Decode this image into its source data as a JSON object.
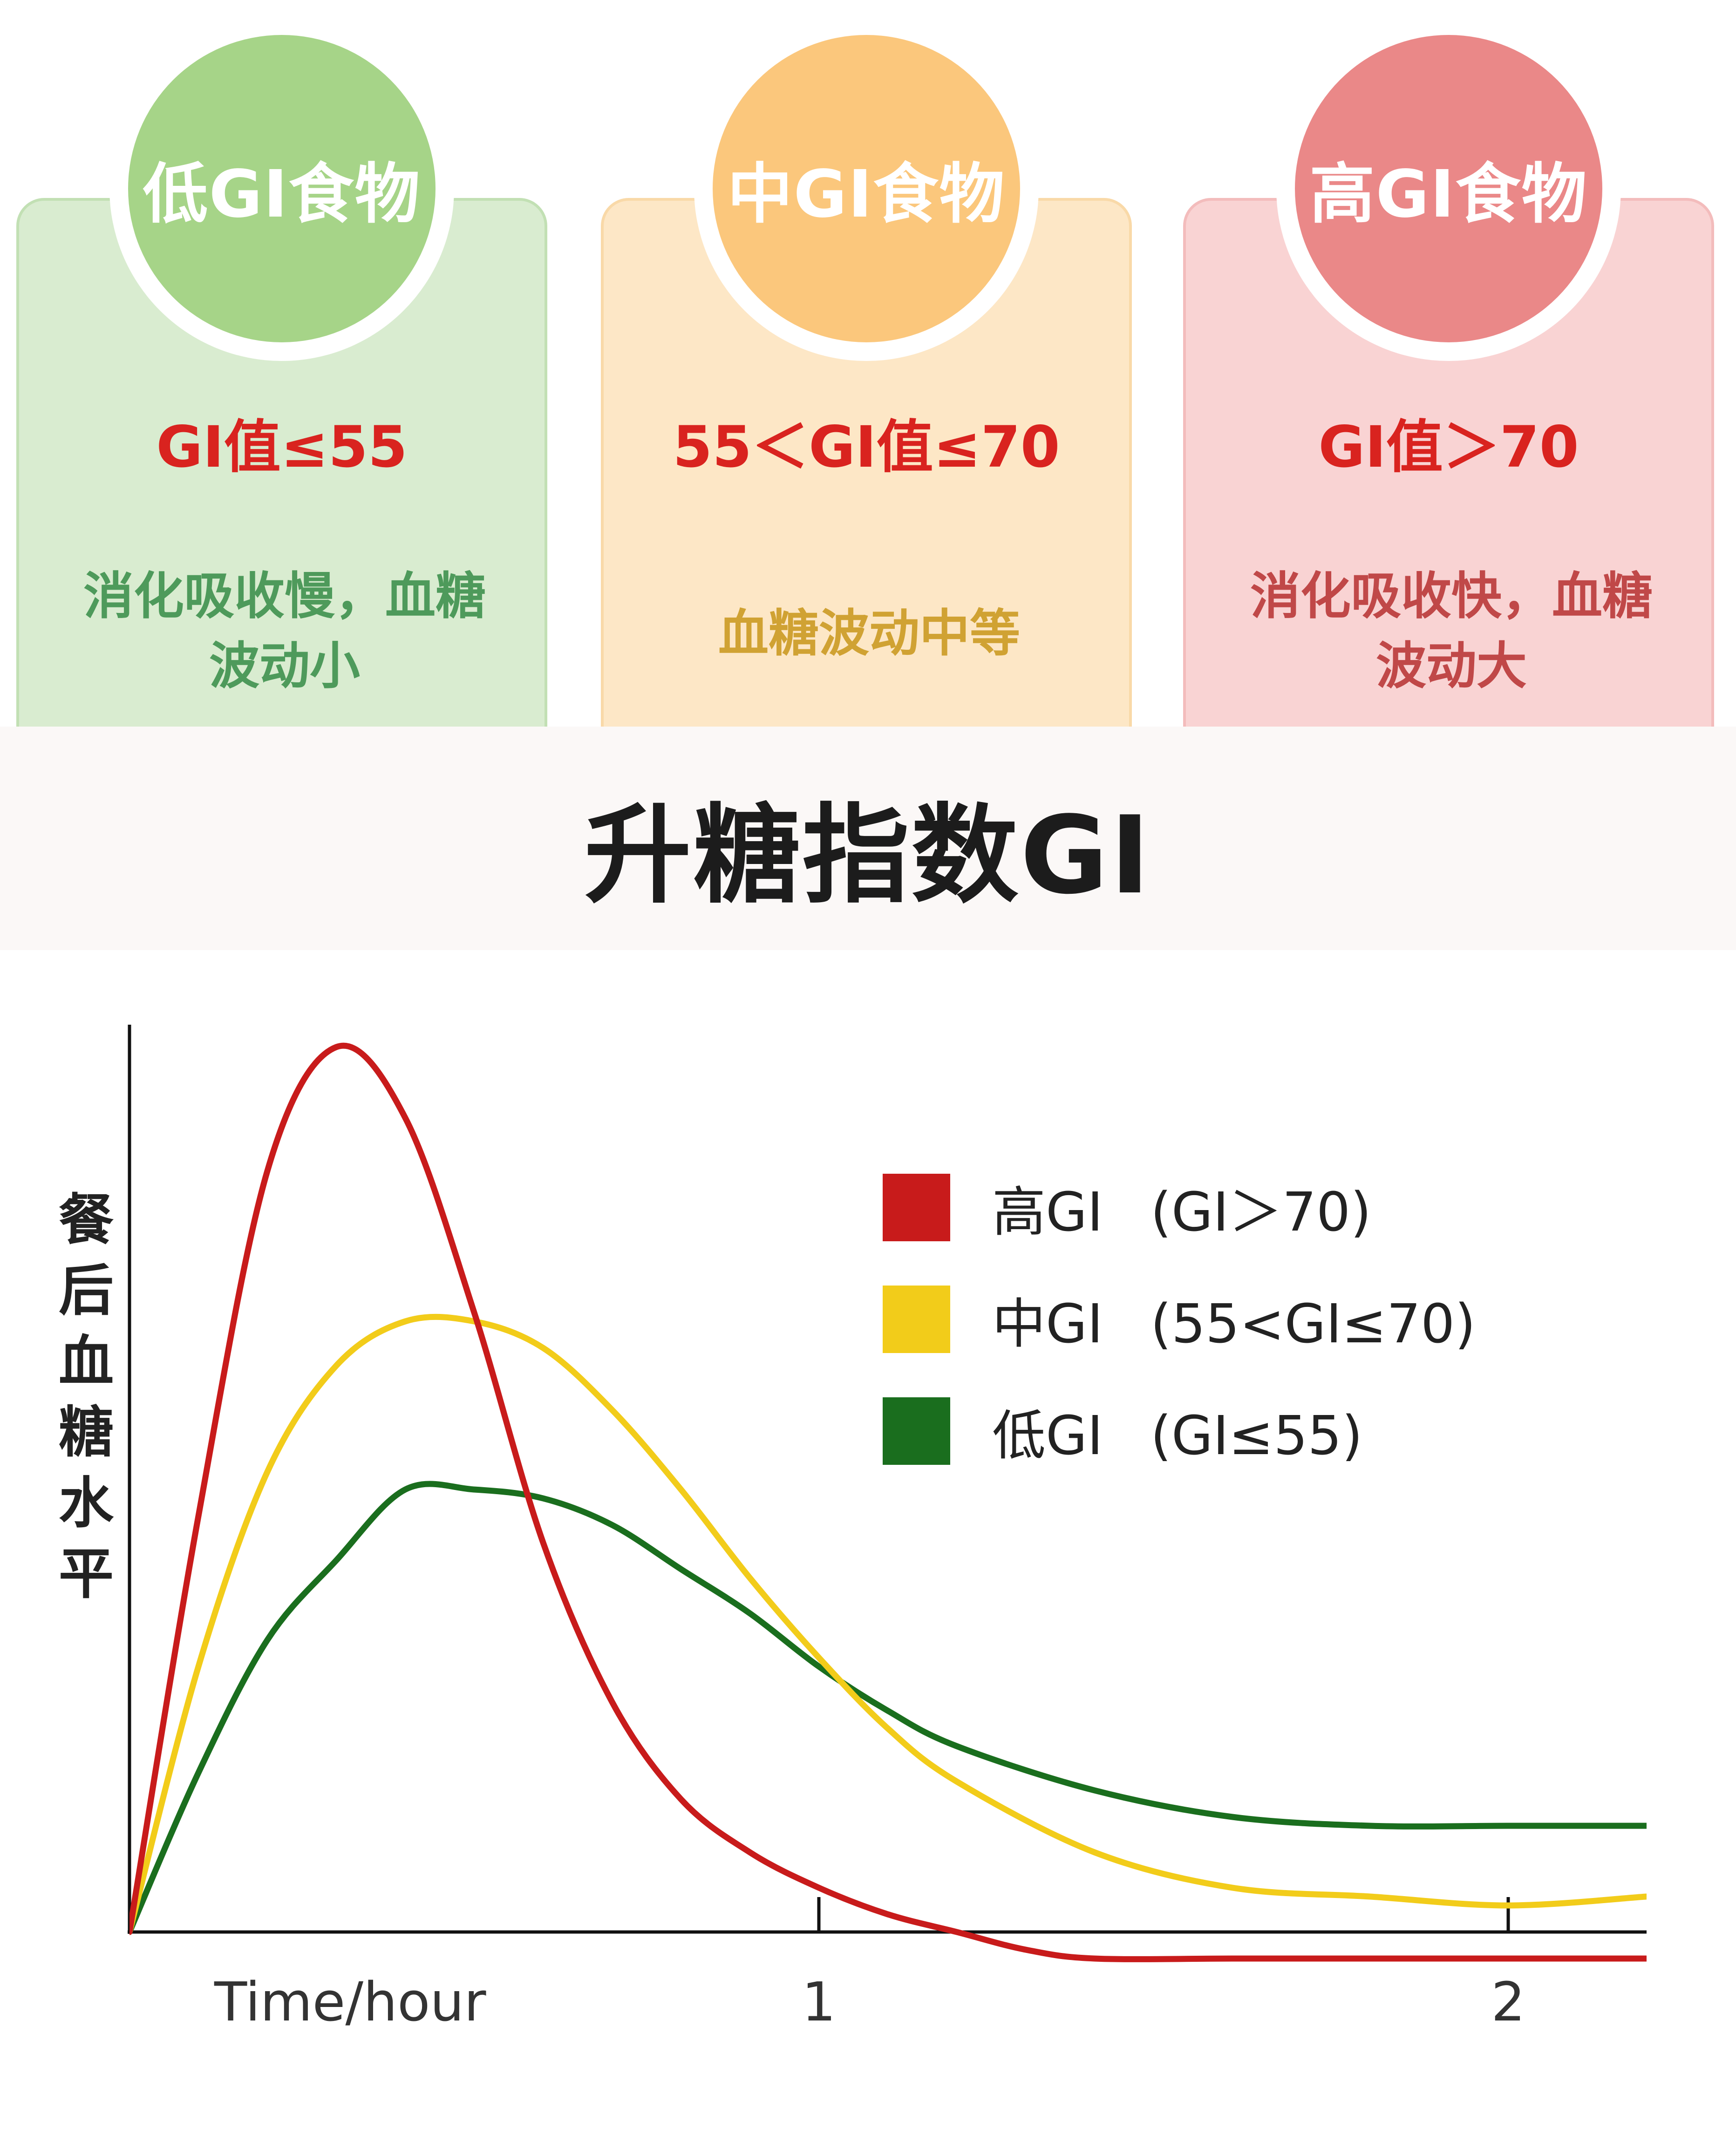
{
  "cards": [
    {
      "title": "低GI食物",
      "range": "GI值≤55",
      "desc": "消化吸收慢，血糖波动小"
    },
    {
      "title": "中GI食物",
      "range": "55＜GI值≤70",
      "desc": "血糖波动中等"
    },
    {
      "title": "高GI食物",
      "range": "GI值＞70",
      "desc": "消化吸收快，血糖波动大"
    }
  ],
  "colors": {
    "low": "#1a6e1e",
    "mid": "#f2cc1a",
    "high": "#c81b1b",
    "range_text": "#d9231f"
  },
  "title": "升糖指数GI",
  "chart_data": {
    "type": "line",
    "xlabel": "Time/hour",
    "ylabel": "餐后血糖水平",
    "x_ticks": [
      {
        "value": 1,
        "label": "1"
      },
      {
        "value": 2,
        "label": "2"
      }
    ],
    "xlim": [
      0,
      2.1
    ],
    "ylim": [
      0,
      1
    ],
    "grid": false,
    "legend_position": "top-right",
    "series": [
      {
        "name": "高GI",
        "legend_suffix": "(GI＞70)",
        "color": "#c81b1b",
        "x": [
          0,
          0.1,
          0.2,
          0.3,
          0.4,
          0.5,
          0.6,
          0.7,
          0.8,
          0.9,
          1.0,
          1.1,
          1.2,
          1.3,
          1.4,
          1.6,
          1.8,
          2.0,
          2.2
        ],
        "y": [
          0,
          0.47,
          0.86,
          1.0,
          0.92,
          0.7,
          0.44,
          0.26,
          0.15,
          0.09,
          0.05,
          0.02,
          0.0,
          -0.02,
          -0.03,
          -0.03,
          -0.03,
          -0.03,
          -0.03
        ]
      },
      {
        "name": "中GI",
        "legend_suffix": "(55<GI≤70)",
        "color": "#f2cc1a",
        "x": [
          0,
          0.1,
          0.2,
          0.3,
          0.4,
          0.5,
          0.6,
          0.7,
          0.8,
          0.9,
          1.0,
          1.1,
          1.2,
          1.4,
          1.6,
          1.8,
          2.0,
          2.2
        ],
        "y": [
          0,
          0.3,
          0.52,
          0.64,
          0.69,
          0.69,
          0.66,
          0.59,
          0.5,
          0.4,
          0.31,
          0.23,
          0.17,
          0.09,
          0.05,
          0.04,
          0.03,
          0.04
        ]
      },
      {
        "name": "低GI",
        "legend_suffix": "(GI≤55)",
        "color": "#1a6e1e",
        "x": [
          0,
          0.1,
          0.2,
          0.3,
          0.4,
          0.5,
          0.6,
          0.7,
          0.8,
          0.9,
          1.0,
          1.1,
          1.2,
          1.4,
          1.6,
          1.8,
          2.0,
          2.2
        ],
        "y": [
          0,
          0.18,
          0.33,
          0.42,
          0.5,
          0.5,
          0.49,
          0.46,
          0.41,
          0.36,
          0.3,
          0.25,
          0.21,
          0.16,
          0.13,
          0.12,
          0.12,
          0.12
        ]
      }
    ]
  }
}
